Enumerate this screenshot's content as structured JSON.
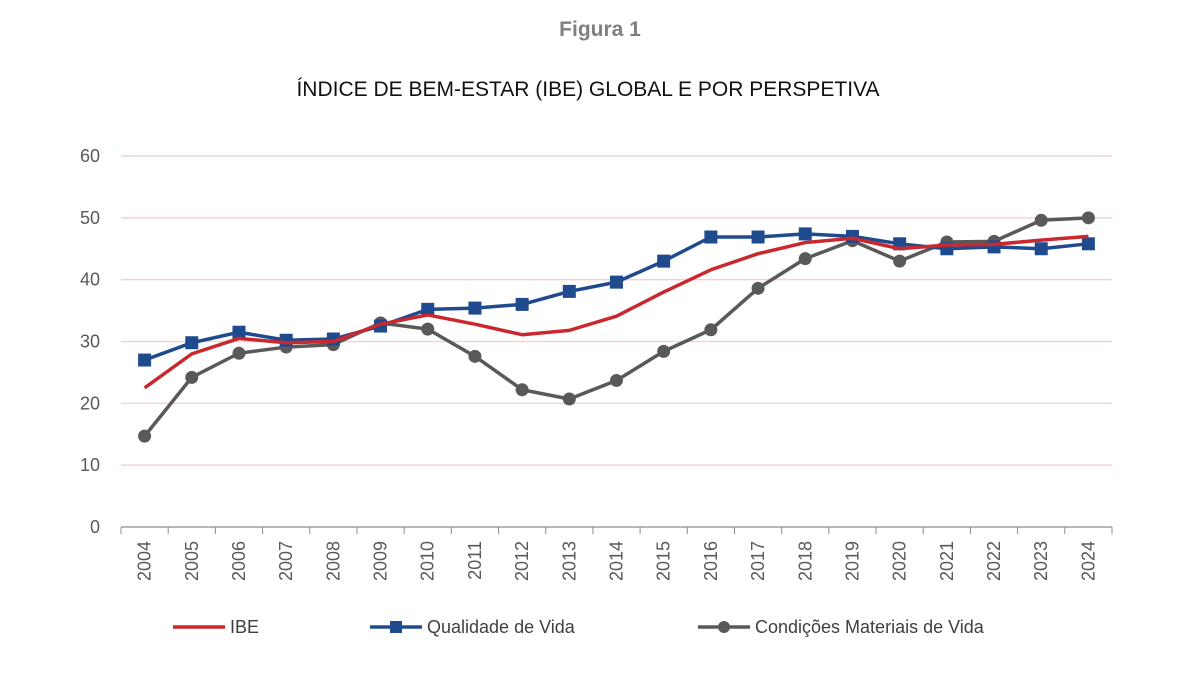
{
  "figure_label": "Figura 1",
  "chart_data": {
    "type": "line",
    "title": "ÍNDICE DE BEM-ESTAR (IBE) GLOBAL E POR PERSPETIVA",
    "xlabel": "",
    "ylabel": "",
    "ylim": [
      0,
      60
    ],
    "yticks": [
      0,
      10,
      20,
      30,
      40,
      50,
      60
    ],
    "grid": true,
    "legend_position": "bottom",
    "categories": [
      "2004",
      "2005",
      "2006",
      "2007",
      "2008",
      "2009",
      "2010",
      "2011",
      "2012",
      "2013",
      "2014",
      "2015",
      "2016",
      "2017",
      "2018",
      "2019",
      "2020",
      "2021",
      "2022",
      "2023",
      "2024"
    ],
    "series": [
      {
        "name": "IBE",
        "color": "#c8282e",
        "marker": "none",
        "values": [
          22.5,
          28.0,
          30.5,
          29.8,
          30.0,
          32.8,
          34.3,
          32.8,
          31.1,
          31.8,
          34.1,
          38.0,
          41.6,
          44.2,
          46.0,
          46.7,
          45.0,
          45.6,
          45.7,
          46.4,
          47.0
        ]
      },
      {
        "name": "Qualidade de Vida",
        "color": "#1f4b8e",
        "marker": "square",
        "values": [
          27.0,
          29.8,
          31.5,
          30.2,
          30.4,
          32.5,
          35.2,
          35.4,
          36.0,
          38.1,
          39.6,
          43.0,
          46.9,
          46.9,
          47.4,
          47.0,
          45.8,
          45.0,
          45.3,
          45.0,
          45.8
        ]
      },
      {
        "name": "Condições Materiais de Vida",
        "color": "#595959",
        "marker": "circle",
        "values": [
          14.7,
          24.2,
          28.1,
          29.1,
          29.5,
          33.0,
          32.0,
          27.6,
          22.2,
          20.7,
          23.7,
          28.4,
          31.9,
          38.6,
          43.4,
          46.3,
          43.0,
          46.1,
          46.2,
          49.6,
          50.0
        ]
      }
    ]
  }
}
